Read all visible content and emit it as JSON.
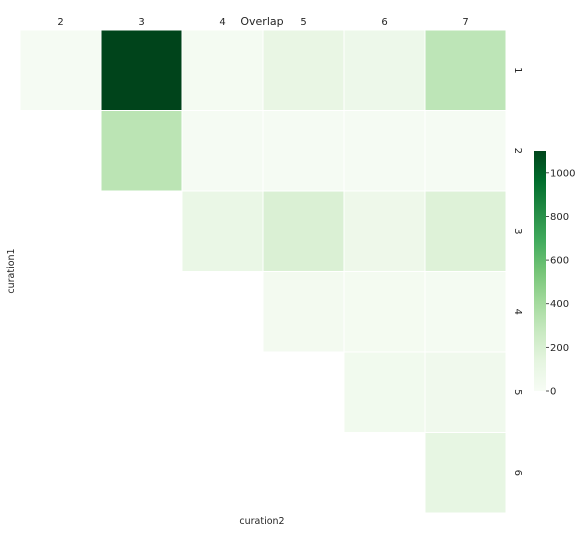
{
  "chart_data": {
    "type": "heatmap",
    "title": "Overlap",
    "xlabel": "curation2",
    "ylabel": "curation1",
    "x_categories": [
      "2",
      "3",
      "4",
      "5",
      "6",
      "7"
    ],
    "y_categories": [
      "1",
      "2",
      "3",
      "4",
      "5",
      "6"
    ],
    "values": [
      [
        15,
        1100,
        20,
        110,
        75,
        310
      ],
      [
        null,
        320,
        15,
        12,
        12,
        15
      ],
      [
        null,
        null,
        100,
        190,
        70,
        170
      ],
      [
        null,
        null,
        null,
        30,
        25,
        20
      ],
      [
        null,
        null,
        null,
        null,
        45,
        50
      ],
      [
        null,
        null,
        null,
        null,
        null,
        120
      ]
    ],
    "colormap": "Greens",
    "vmin": 0,
    "vmax": 1100,
    "colorbar_ticks": [
      "0",
      "200",
      "400",
      "600",
      "800",
      "1000"
    ],
    "colorbar_tick_values": [
      0,
      200,
      400,
      600,
      800,
      1000
    ],
    "grid": false,
    "x_tick_position": "top",
    "y_tick_position": "right"
  }
}
